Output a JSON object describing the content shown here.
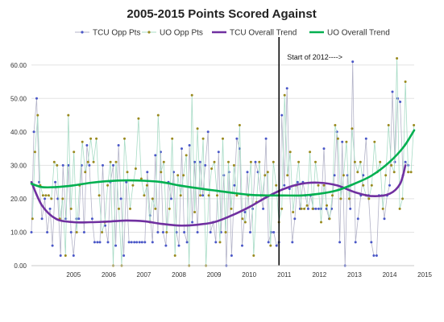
{
  "chart_data": {
    "type": "line",
    "title": "2005-2015 Points Scored Against",
    "xlabel": "",
    "ylabel": "",
    "x_range": [
      2004.3,
      2015.2
    ],
    "ylim": [
      0,
      65
    ],
    "y_ticks": [
      0,
      10,
      20,
      30,
      40,
      50,
      60
    ],
    "y_tick_labels": [
      "0.00",
      "10.00",
      "20.00",
      "30.00",
      "40.00",
      "50.00",
      "60.00"
    ],
    "x_tick_labels": [
      "2005",
      "2006",
      "2007",
      "2008",
      "2009",
      "2010",
      "2011",
      "2012",
      "2013",
      "2014",
      "2015"
    ],
    "grid": "horizontal",
    "legend_position": "top",
    "annotation": {
      "x": 2011.35,
      "text": "Start of 2012---->"
    },
    "series": [
      {
        "name": "TCU Opp Pts",
        "style": "line-markers",
        "color": "#b3b3c8",
        "marker_color": "#4a57c8",
        "x": [
          2004.3,
          2004.37,
          2004.45,
          2004.52,
          2004.6,
          2004.68,
          2004.75,
          2004.83,
          2004.9,
          2004.98,
          2005.05,
          2005.13,
          2005.2,
          2005.28,
          2005.35,
          2005.43,
          2005.5,
          2005.58,
          2005.65,
          2005.73,
          2005.8,
          2005.88,
          2005.95,
          2006.03,
          2006.1,
          2006.18,
          2006.25,
          2006.33,
          2006.4,
          2006.48,
          2006.55,
          2006.63,
          2006.7,
          2006.78,
          2006.85,
          2006.93,
          2007.0,
          2007.08,
          2007.15,
          2007.23,
          2007.3,
          2007.38,
          2007.45,
          2007.53,
          2007.6,
          2007.68,
          2007.75,
          2007.83,
          2007.9,
          2007.98,
          2008.05,
          2008.13,
          2008.2,
          2008.28,
          2008.35,
          2008.43,
          2008.5,
          2008.58,
          2008.65,
          2008.73,
          2008.8,
          2008.88,
          2008.95,
          2009.03,
          2009.1,
          2009.18,
          2009.25,
          2009.33,
          2009.4,
          2009.48,
          2009.55,
          2009.63,
          2009.7,
          2009.78,
          2009.85,
          2009.93,
          2010.0,
          2010.08,
          2010.15,
          2010.23,
          2010.3,
          2010.38,
          2010.45,
          2010.53,
          2010.6,
          2010.68,
          2010.75,
          2010.83,
          2010.9,
          2010.98,
          2011.05,
          2011.13,
          2011.2,
          2011.28,
          2011.35,
          2011.43,
          2011.5,
          2011.58,
          2011.65,
          2011.73,
          2011.8,
          2011.88,
          2011.95,
          2012.03,
          2012.1,
          2012.18,
          2012.25,
          2012.33,
          2012.4,
          2012.48,
          2012.55,
          2012.63,
          2012.7,
          2012.78,
          2012.85,
          2012.93,
          2013.0,
          2013.08,
          2013.15,
          2013.23,
          2013.3,
          2013.38,
          2013.45,
          2013.53,
          2013.6,
          2013.68,
          2013.75,
          2013.83,
          2013.9,
          2013.98,
          2014.05,
          2014.13,
          2014.2,
          2014.28,
          2014.35,
          2014.43,
          2014.5,
          2014.58,
          2014.65,
          2014.73,
          2014.8,
          2014.88,
          2014.95,
          2015.03
        ],
        "values": [
          10,
          40,
          50,
          25,
          14,
          20,
          10,
          17,
          6,
          25,
          20,
          3,
          30,
          14,
          30,
          10,
          3,
          14,
          14,
          30,
          10,
          36,
          30,
          14,
          7,
          7,
          7,
          30,
          12,
          7,
          25,
          30,
          6,
          36,
          20,
          3,
          25,
          7,
          7,
          7,
          7,
          7,
          7,
          7,
          28,
          15,
          7,
          33,
          10,
          34,
          10,
          6,
          25,
          20,
          28,
          10,
          6,
          35,
          10,
          7,
          36,
          13,
          31,
          10,
          31,
          21,
          30,
          40,
          10,
          13,
          7,
          34,
          10,
          27,
          0,
          28,
          3,
          24,
          38,
          35,
          6,
          16,
          28,
          10,
          17,
          31,
          28,
          21,
          17,
          38,
          7,
          10,
          10,
          6,
          7,
          45,
          24,
          53,
          23,
          7,
          14,
          25,
          17,
          25,
          21,
          17,
          21,
          17,
          17,
          17,
          17,
          35,
          17,
          14,
          17,
          27,
          40,
          7,
          37,
          0,
          27,
          17,
          61,
          7,
          14,
          21,
          27,
          38,
          21,
          7,
          3,
          3,
          21,
          21,
          14,
          21,
          24,
          52,
          31,
          50,
          49,
          27,
          31,
          30
        ]
      },
      {
        "name": "UO Opp Pts",
        "style": "line-markers",
        "color": "#a8dcc6",
        "marker_color": "#9a8a1e",
        "x": [
          2004.33,
          2004.4,
          2004.48,
          2004.55,
          2004.63,
          2004.71,
          2004.79,
          2004.87,
          2004.95,
          2005.03,
          2005.11,
          2005.19,
          2005.27,
          2005.35,
          2005.43,
          2005.51,
          2005.59,
          2005.67,
          2005.75,
          2005.83,
          2005.91,
          2005.99,
          2006.07,
          2006.15,
          2006.23,
          2006.31,
          2006.39,
          2006.47,
          2006.55,
          2006.63,
          2006.71,
          2006.79,
          2006.87,
          2006.95,
          2007.03,
          2007.11,
          2007.19,
          2007.27,
          2007.35,
          2007.43,
          2007.51,
          2007.59,
          2007.67,
          2007.75,
          2007.83,
          2007.91,
          2007.99,
          2008.07,
          2008.15,
          2008.23,
          2008.31,
          2008.39,
          2008.47,
          2008.55,
          2008.63,
          2008.71,
          2008.79,
          2008.87,
          2008.95,
          2009.03,
          2009.11,
          2009.19,
          2009.27,
          2009.35,
          2009.43,
          2009.51,
          2009.59,
          2009.67,
          2009.75,
          2009.83,
          2009.91,
          2009.99,
          2010.07,
          2010.15,
          2010.23,
          2010.31,
          2010.39,
          2010.47,
          2010.55,
          2010.63,
          2010.71,
          2010.79,
          2010.87,
          2010.95,
          2011.03,
          2011.11,
          2011.19,
          2011.27,
          2011.35,
          2011.43,
          2011.51,
          2011.59,
          2011.67,
          2011.75,
          2011.83,
          2011.91,
          2011.99,
          2012.07,
          2012.15,
          2012.23,
          2012.31,
          2012.39,
          2012.47,
          2012.55,
          2012.63,
          2012.71,
          2012.79,
          2012.87,
          2012.95,
          2013.03,
          2013.11,
          2013.19,
          2013.27,
          2013.35,
          2013.43,
          2013.51,
          2013.59,
          2013.67,
          2013.75,
          2013.83,
          2013.91,
          2013.99,
          2014.07,
          2014.15,
          2014.23,
          2014.31,
          2014.39,
          2014.47,
          2014.55,
          2014.63,
          2014.71,
          2014.79,
          2014.87,
          2014.95,
          2015.03,
          2015.11,
          2015.19
        ],
        "values": [
          14,
          34,
          45,
          24,
          21,
          21,
          21,
          20,
          31,
          30,
          14,
          20,
          3,
          45,
          17,
          34,
          10,
          24,
          37,
          28,
          31,
          38,
          31,
          38,
          21,
          10,
          13,
          24,
          31,
          0,
          31,
          17,
          0,
          38,
          28,
          17,
          24,
          29,
          44,
          26,
          21,
          24,
          13,
          20,
          17,
          45,
          28,
          31,
          10,
          17,
          38,
          3,
          27,
          21,
          27,
          33,
          0,
          51,
          16,
          41,
          21,
          38,
          0,
          21,
          29,
          31,
          21,
          7,
          38,
          10,
          31,
          17,
          30,
          21,
          42,
          14,
          13,
          21,
          31,
          3,
          19,
          31,
          21,
          27,
          28,
          6,
          31,
          24,
          13,
          17,
          51,
          27,
          34,
          16,
          24,
          31,
          17,
          17,
          18,
          34,
          17,
          31,
          24,
          13,
          24,
          18,
          14,
          21,
          42,
          38,
          20,
          27,
          37,
          20,
          41,
          31,
          28,
          31,
          24,
          21,
          20,
          24,
          37,
          28,
          31,
          17,
          27,
          42,
          30,
          28,
          62,
          17,
          20,
          55,
          28,
          28,
          42
        ]
      },
      {
        "name": "TCU Overall Trend",
        "style": "smooth-line",
        "color": "#7030a0",
        "x": [
          2004.3,
          2004.6,
          2005.0,
          2005.5,
          2006.0,
          2006.5,
          2007.0,
          2007.5,
          2008.0,
          2008.5,
          2009.0,
          2009.5,
          2010.0,
          2010.5,
          2011.0,
          2011.5,
          2012.0,
          2012.5,
          2013.0,
          2013.5,
          2014.0,
          2014.5,
          2014.8,
          2014.95
        ],
        "values": [
          25,
          18,
          14,
          13,
          13,
          13.2,
          13.5,
          13.3,
          12.5,
          12,
          12.2,
          13,
          15,
          17.5,
          20.5,
          23,
          24.5,
          24.8,
          24,
          22,
          20.8,
          21.5,
          24.5,
          30
        ]
      },
      {
        "name": "UO Overall Trend",
        "style": "smooth-line",
        "color": "#00b050",
        "x": [
          2004.3,
          2004.6,
          2005.0,
          2005.5,
          2006.0,
          2006.5,
          2007.0,
          2007.5,
          2008.0,
          2008.5,
          2009.0,
          2009.5,
          2010.0,
          2010.5,
          2011.0,
          2011.5,
          2012.0,
          2012.5,
          2013.0,
          2013.5,
          2014.0,
          2014.5,
          2014.9,
          2015.2
        ],
        "values": [
          24.5,
          23.5,
          23.5,
          24,
          24.8,
          25.3,
          25.5,
          25.4,
          25,
          24,
          23.2,
          22.5,
          21.8,
          21.2,
          21,
          21,
          21,
          21.5,
          22.5,
          24.5,
          27,
          31,
          35.5,
          40.5
        ]
      }
    ]
  }
}
